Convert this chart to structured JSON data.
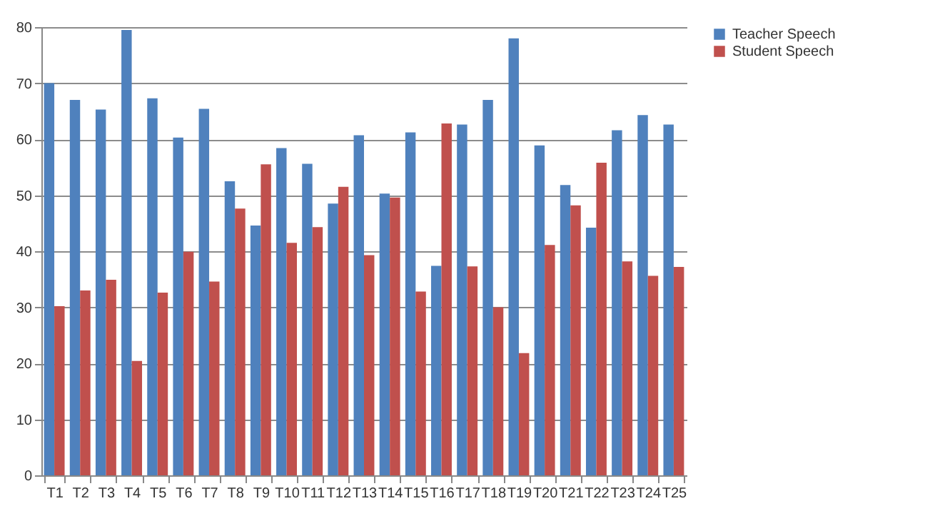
{
  "chart_data": {
    "type": "bar",
    "categories": [
      "T1",
      "T2",
      "T3",
      "T4",
      "T5",
      "T6",
      "T7",
      "T8",
      "T9",
      "T10",
      "T11",
      "T12",
      "T13",
      "T14",
      "T15",
      "T16",
      "T17",
      "T18",
      "T19",
      "T20",
      "T21",
      "T22",
      "T23",
      "T24",
      "T25"
    ],
    "series": [
      {
        "name": "Teacher Speech",
        "color": "#4f81bd",
        "values": [
          70,
          67,
          65.3,
          79.5,
          67.3,
          60.3,
          65.4,
          52.5,
          44.6,
          58.4,
          55.6,
          48.5,
          60.7,
          50.3,
          61.2,
          37.4,
          62.6,
          67,
          78,
          58.9,
          51.8,
          44.2,
          61.6,
          64.3,
          62.6
        ]
      },
      {
        "name": "Student Speech",
        "color": "#c0504d",
        "values": [
          30.2,
          33,
          34.9,
          20.4,
          32.6,
          39.9,
          34.6,
          47.6,
          55.5,
          41.5,
          44.3,
          51.5,
          39.3,
          49.6,
          32.8,
          62.8,
          37.3,
          30,
          21.8,
          41.1,
          48.2,
          55.8,
          38.2,
          35.6,
          37.2
        ]
      }
    ],
    "ylim": [
      0,
      80
    ],
    "yticks": [
      0,
      10,
      20,
      30,
      40,
      50,
      60,
      70,
      80
    ],
    "grid": "y",
    "legend": "right"
  }
}
